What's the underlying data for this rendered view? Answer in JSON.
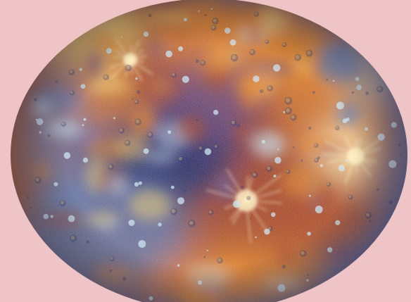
{
  "scene": {
    "background_color": "#efc4c6",
    "subject": "planet-icon",
    "palette": {
      "deep_blue": "#24346e",
      "mid_blue": "#5b7fbf",
      "pale_blue": "#c9e4f4",
      "purple": "#6b4e86",
      "rust": "#a8492c",
      "orange": "#e2872f",
      "yellow": "#f1cf72",
      "cream": "#fff2c6"
    }
  }
}
